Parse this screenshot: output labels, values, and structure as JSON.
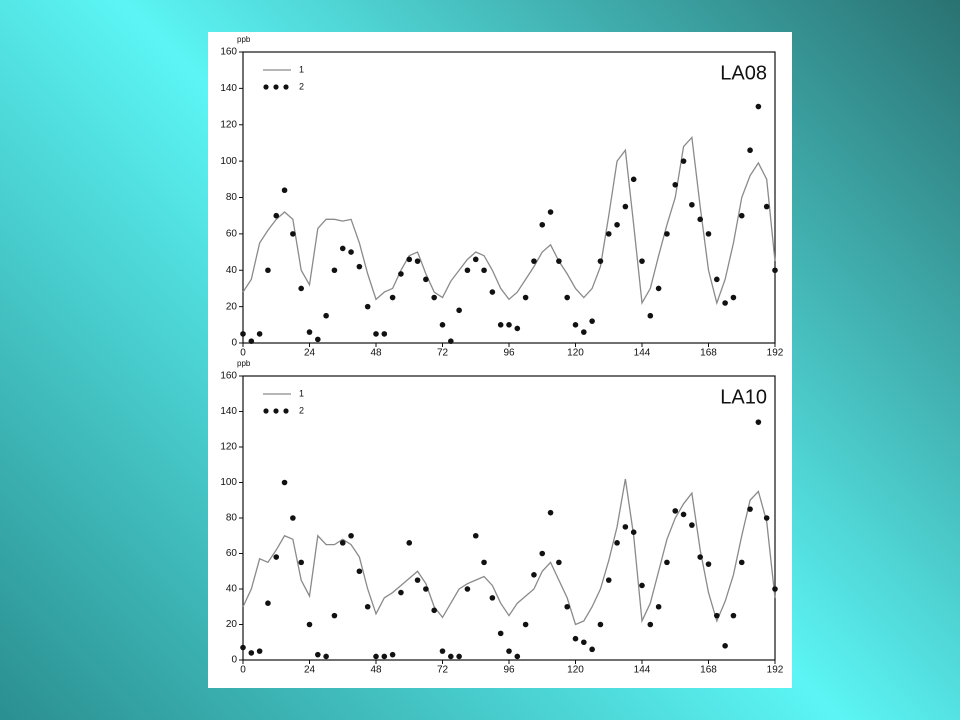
{
  "chart_data": [
    {
      "type": "line",
      "title": "LA08",
      "y_label": "ppb",
      "legend": "upper left",
      "grid": false,
      "x": [
        0,
        3,
        6,
        9,
        12,
        15,
        18,
        21,
        24,
        27,
        30,
        33,
        36,
        39,
        42,
        45,
        48,
        51,
        54,
        57,
        60,
        63,
        66,
        69,
        72,
        75,
        78,
        81,
        84,
        87,
        90,
        93,
        96,
        99,
        102,
        105,
        108,
        111,
        114,
        117,
        120,
        123,
        126,
        129,
        132,
        135,
        138,
        141,
        144,
        147,
        150,
        153,
        156,
        159,
        162,
        165,
        168,
        171,
        174,
        177,
        180,
        183,
        186,
        189,
        192
      ],
      "xlim": [
        0,
        192
      ],
      "xticks": [
        0,
        24,
        48,
        72,
        96,
        120,
        144,
        168,
        192
      ],
      "ylim": [
        0,
        160
      ],
      "yticks": [
        0,
        20,
        40,
        60,
        80,
        100,
        120,
        140,
        160
      ],
      "series": [
        {
          "name": "1",
          "mode": "line",
          "color": "#8a8a8a",
          "values": [
            28,
            35,
            55,
            62,
            68,
            72,
            68,
            40,
            32,
            63,
            68,
            68,
            67,
            68,
            55,
            38,
            24,
            28,
            30,
            40,
            48,
            50,
            38,
            28,
            25,
            34,
            40,
            46,
            50,
            48,
            40,
            30,
            24,
            28,
            35,
            42,
            50,
            54,
            45,
            38,
            30,
            25,
            30,
            42,
            70,
            100,
            106,
            65,
            22,
            30,
            48,
            65,
            80,
            108,
            113,
            75,
            40,
            22,
            35,
            55,
            80,
            92,
            99,
            90,
            45
          ]
        },
        {
          "name": "2",
          "mode": "markers",
          "color": "#111111",
          "values": [
            5,
            1,
            5,
            40,
            70,
            84,
            60,
            30,
            6,
            2,
            15,
            40,
            52,
            50,
            42,
            20,
            5,
            5,
            25,
            38,
            46,
            45,
            35,
            25,
            10,
            1,
            18,
            40,
            46,
            40,
            28,
            10,
            10,
            8,
            25,
            45,
            65,
            72,
            45,
            25,
            10,
            6,
            12,
            45,
            60,
            65,
            75,
            90,
            45,
            15,
            30,
            60,
            87,
            100,
            76,
            68,
            60,
            35,
            22,
            25,
            70,
            106,
            130,
            75,
            40
          ]
        }
      ]
    },
    {
      "type": "line",
      "title": "LA10",
      "y_label": "ppb",
      "legend": "upper left",
      "grid": false,
      "x": [
        0,
        3,
        6,
        9,
        12,
        15,
        18,
        21,
        24,
        27,
        30,
        33,
        36,
        39,
        42,
        45,
        48,
        51,
        54,
        57,
        60,
        63,
        66,
        69,
        72,
        75,
        78,
        81,
        84,
        87,
        90,
        93,
        96,
        99,
        102,
        105,
        108,
        111,
        114,
        117,
        120,
        123,
        126,
        129,
        132,
        135,
        138,
        141,
        144,
        147,
        150,
        153,
        156,
        159,
        162,
        165,
        168,
        171,
        174,
        177,
        180,
        183,
        186,
        189,
        192
      ],
      "xlim": [
        0,
        192
      ],
      "xticks": [
        0,
        24,
        48,
        72,
        96,
        120,
        144,
        168,
        192
      ],
      "ylim": [
        0,
        160
      ],
      "yticks": [
        0,
        20,
        40,
        60,
        80,
        100,
        120,
        140,
        160
      ],
      "series": [
        {
          "name": "1",
          "mode": "line",
          "color": "#8a8a8a",
          "values": [
            30,
            40,
            57,
            55,
            62,
            70,
            68,
            45,
            36,
            70,
            65,
            65,
            68,
            65,
            58,
            40,
            26,
            35,
            38,
            42,
            46,
            50,
            43,
            30,
            24,
            32,
            40,
            43,
            45,
            47,
            42,
            32,
            25,
            32,
            36,
            40,
            50,
            55,
            45,
            35,
            20,
            22,
            30,
            40,
            56,
            75,
            102,
            70,
            22,
            32,
            50,
            68,
            80,
            88,
            94,
            62,
            38,
            22,
            33,
            48,
            70,
            90,
            95,
            78,
            35
          ]
        },
        {
          "name": "2",
          "mode": "markers",
          "color": "#111111",
          "values": [
            7,
            4,
            5,
            32,
            58,
            100,
            80,
            55,
            20,
            3,
            2,
            25,
            66,
            70,
            50,
            30,
            2,
            2,
            3,
            38,
            66,
            45,
            40,
            28,
            5,
            2,
            2,
            40,
            70,
            55,
            35,
            15,
            5,
            2,
            20,
            48,
            60,
            83,
            55,
            30,
            12,
            10,
            6,
            20,
            45,
            66,
            75,
            72,
            42,
            20,
            30,
            55,
            84,
            82,
            76,
            58,
            54,
            25,
            8,
            25,
            55,
            85,
            134,
            80,
            40
          ]
        }
      ]
    }
  ]
}
